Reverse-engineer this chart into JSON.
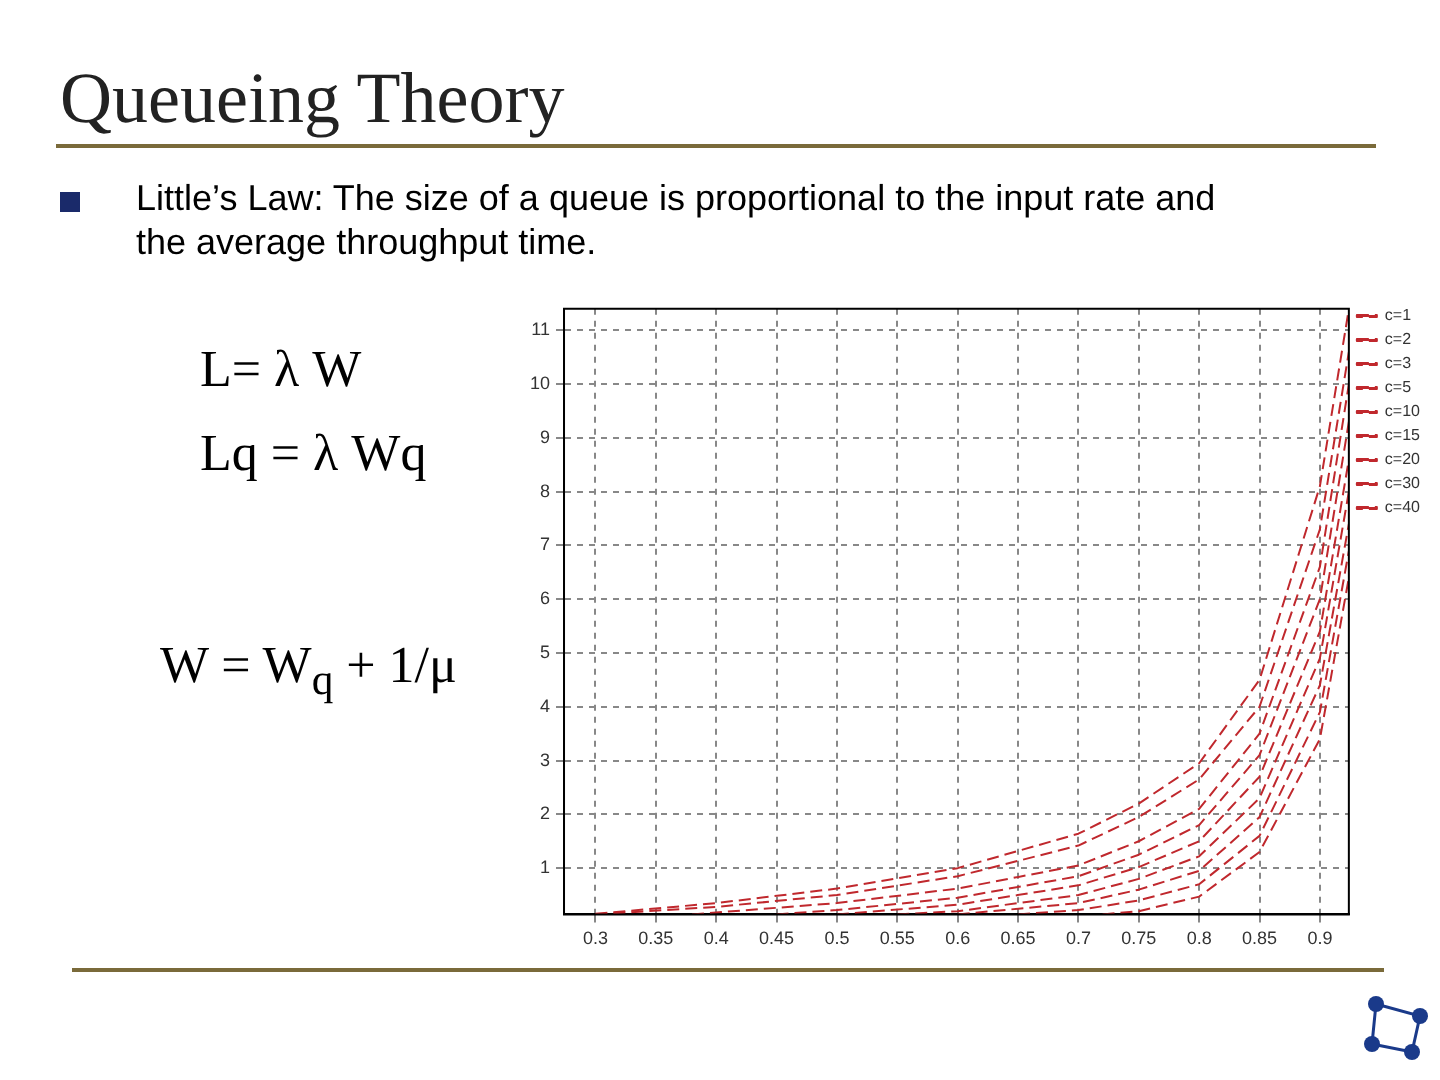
{
  "chart_data": {
    "type": "line",
    "title": "Queueing Theory",
    "subtitle": "Little’s Law: The size of a queue is proportional to the input rate and the average throughput time.",
    "annotations": [
      "L= λ W",
      "Lq = λ Wq",
      "W = W$_{q}$ + 1/μ"
    ],
    "xlim": [
      0.274,
      0.924
    ],
    "xticks": [
      0.3,
      0.35,
      0.4,
      0.45,
      0.5,
      0.55,
      0.6,
      0.65,
      0.7,
      0.75,
      0.8,
      0.85,
      0.9
    ],
    "ylim": [
      0.14,
      11.4
    ],
    "yticks": [
      1,
      2,
      3,
      4,
      5,
      6,
      7,
      8,
      9,
      10,
      11
    ],
    "grid": true,
    "legend": "top right",
    "marker": "none",
    "line_style": "dashed",
    "series": [
      {
        "name": "c=1",
        "color": "#c0282d",
        "x": [
          0.3,
          0.4,
          0.5,
          0.6,
          0.7,
          0.75,
          0.8,
          0.85,
          0.9,
          0.924
        ],
        "values": [
          0.15,
          0.35,
          0.62,
          1.0,
          1.64,
          2.2,
          2.95,
          4.5,
          8.1,
          11.4
        ]
      },
      {
        "name": "c=2",
        "color": "#c0282d",
        "x": [
          0.3,
          0.4,
          0.5,
          0.6,
          0.7,
          0.75,
          0.8,
          0.85,
          0.9,
          0.924
        ],
        "values": [
          0.14,
          0.28,
          0.5,
          0.85,
          1.42,
          1.95,
          2.65,
          4.0,
          7.3,
          10.6
        ]
      },
      {
        "name": "c=3",
        "color": "#c0282d",
        "x": [
          0.38,
          0.5,
          0.6,
          0.7,
          0.75,
          0.8,
          0.85,
          0.9,
          0.924
        ],
        "values": [
          0.14,
          0.35,
          0.62,
          1.05,
          1.5,
          2.1,
          3.5,
          6.6,
          10.0
        ]
      },
      {
        "name": "c=5",
        "color": "#c0282d",
        "x": [
          0.45,
          0.5,
          0.6,
          0.7,
          0.75,
          0.8,
          0.85,
          0.9,
          0.924
        ],
        "values": [
          0.14,
          0.22,
          0.45,
          0.85,
          1.25,
          1.8,
          3.1,
          6.0,
          9.3
        ]
      },
      {
        "name": "c=10",
        "color": "#c0282d",
        "x": [
          0.5,
          0.6,
          0.7,
          0.75,
          0.8,
          0.85,
          0.9,
          0.924
        ],
        "values": [
          0.14,
          0.32,
          0.68,
          1.02,
          1.5,
          2.7,
          5.4,
          8.6
        ]
      },
      {
        "name": "c=15",
        "color": "#c0282d",
        "x": [
          0.55,
          0.6,
          0.7,
          0.75,
          0.8,
          0.85,
          0.9,
          0.924
        ],
        "values": [
          0.14,
          0.2,
          0.5,
          0.8,
          1.22,
          2.3,
          4.9,
          8.0
        ]
      },
      {
        "name": "c=20",
        "color": "#c0282d",
        "x": [
          0.6,
          0.7,
          0.75,
          0.8,
          0.85,
          0.9,
          0.924
        ],
        "values": [
          0.14,
          0.35,
          0.6,
          0.95,
          1.95,
          4.4,
          7.4
        ]
      },
      {
        "name": "c=30",
        "color": "#c0282d",
        "x": [
          0.65,
          0.7,
          0.75,
          0.8,
          0.85,
          0.9,
          0.924
        ],
        "values": [
          0.14,
          0.22,
          0.4,
          0.7,
          1.6,
          3.9,
          6.9
        ]
      },
      {
        "name": "c=40",
        "color": "#c0282d",
        "x": [
          0.72,
          0.75,
          0.8,
          0.85,
          0.9,
          0.924
        ],
        "values": [
          0.14,
          0.2,
          0.47,
          1.3,
          3.4,
          6.4
        ]
      }
    ]
  }
}
